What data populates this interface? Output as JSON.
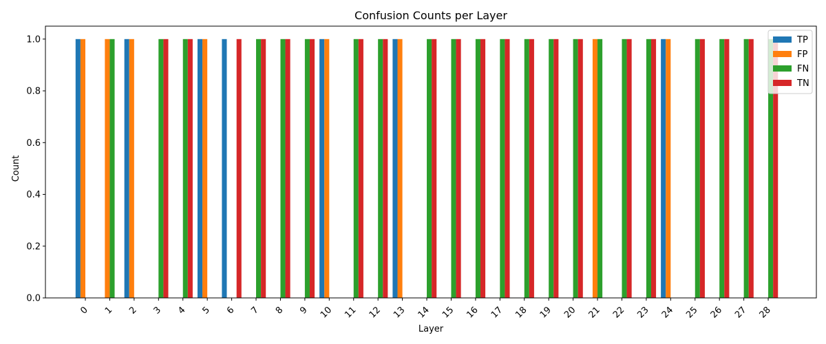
{
  "chart_data": {
    "type": "bar",
    "title": "Confusion Counts per Layer",
    "xlabel": "Layer",
    "ylabel": "Count",
    "ylim": [
      0,
      1.05
    ],
    "yticks": [
      "0.0",
      "0.2",
      "0.4",
      "0.6",
      "0.8",
      "1.0"
    ],
    "categories": [
      "0",
      "1",
      "2",
      "3",
      "4",
      "5",
      "6",
      "7",
      "8",
      "9",
      "10",
      "11",
      "12",
      "13",
      "14",
      "15",
      "16",
      "17",
      "18",
      "19",
      "20",
      "21",
      "22",
      "23",
      "24",
      "25",
      "26",
      "27",
      "28"
    ],
    "legend_position": "top-right",
    "series": [
      {
        "name": "TP",
        "color": "#1f77b4",
        "values": [
          1,
          0,
          1,
          0,
          0,
          1,
          1,
          0,
          0,
          0,
          1,
          0,
          0,
          1,
          0,
          0,
          0,
          0,
          0,
          0,
          0,
          0,
          0,
          0,
          1,
          0,
          0,
          0,
          0
        ]
      },
      {
        "name": "FP",
        "color": "#ff7f0e",
        "values": [
          1,
          1,
          1,
          0,
          0,
          1,
          0,
          0,
          0,
          0,
          1,
          0,
          0,
          1,
          0,
          0,
          0,
          0,
          0,
          0,
          0,
          1,
          0,
          0,
          1,
          0,
          0,
          0,
          0
        ]
      },
      {
        "name": "FN",
        "color": "#2ca02c",
        "values": [
          0,
          1,
          0,
          1,
          1,
          0,
          0,
          1,
          1,
          1,
          0,
          1,
          1,
          0,
          1,
          1,
          1,
          1,
          1,
          1,
          1,
          1,
          1,
          1,
          0,
          1,
          1,
          1,
          1
        ]
      },
      {
        "name": "TN",
        "color": "#d62728",
        "values": [
          0,
          0,
          0,
          1,
          1,
          0,
          1,
          1,
          1,
          1,
          0,
          1,
          1,
          0,
          1,
          1,
          1,
          1,
          1,
          1,
          1,
          0,
          1,
          1,
          0,
          1,
          1,
          1,
          1
        ]
      }
    ]
  }
}
